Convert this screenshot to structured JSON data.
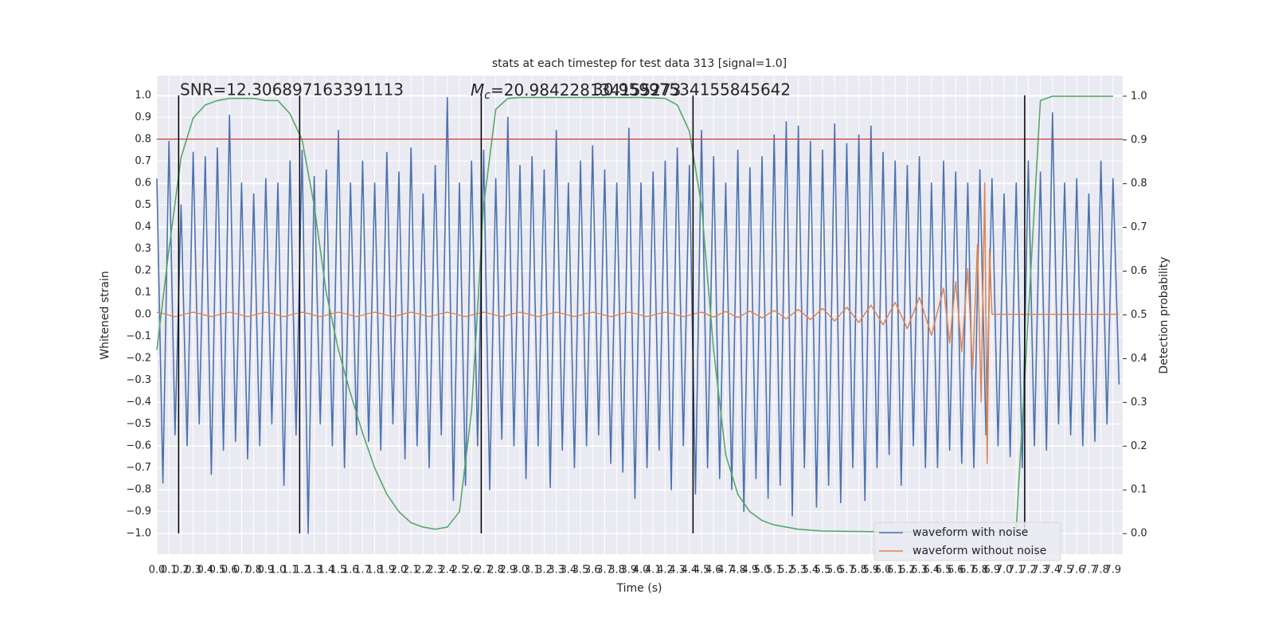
{
  "chart_data": {
    "type": "line",
    "title": "stats at each timestep for test data 313 [signal=1.0]",
    "x_label": "Time (s)",
    "y_label": "Whitened strain",
    "y2_label": "Detection probability",
    "annotations": {
      "snr_text": "SNR=12.306897163391113",
      "mc_symbol": "M",
      "mc_subscript": "c",
      "mc_value": "=20.984228134155273",
      "overlap_text": "30.95997534155845642"
    },
    "xlim": [
      0,
      7.98
    ],
    "ylim": [
      -1.095,
      1.09
    ],
    "y2lim": [
      -0.047,
      1.047
    ],
    "grid": true,
    "legend_position": "lower right",
    "xticks": [
      {
        "value": 0,
        "label": "0.0"
      },
      0.1,
      0.2,
      0.3,
      0.4,
      0.5,
      0.6,
      0.7,
      0.8,
      0.9,
      {
        "value": 1,
        "label": "1.0"
      },
      1.1,
      1.2,
      1.3,
      1.4,
      1.5,
      1.6,
      1.7,
      1.8,
      1.9,
      {
        "value": 2,
        "label": "2.0"
      },
      2.1,
      2.2,
      2.3,
      2.4,
      2.5,
      2.6,
      2.7,
      2.8,
      2.9,
      {
        "value": 3,
        "label": "3.0"
      },
      3.1,
      3.2,
      3.3,
      3.4,
      3.5,
      3.6,
      3.7,
      3.8,
      3.9,
      {
        "value": 4,
        "label": "4.0"
      },
      4.1,
      4.2,
      4.3,
      4.4,
      4.5,
      4.6,
      4.7,
      4.8,
      4.9,
      {
        "value": 5,
        "label": "5.0"
      },
      5.1,
      5.2,
      5.3,
      5.4,
      5.5,
      5.6,
      5.7,
      5.8,
      5.9,
      {
        "value": 6,
        "label": "6.0"
      },
      6.1,
      6.2,
      6.3,
      6.4,
      6.5,
      6.6,
      6.7,
      6.8,
      6.9,
      {
        "value": 7,
        "label": "7.0"
      },
      7.1,
      7.2,
      7.3,
      7.4,
      7.5,
      7.6,
      7.7,
      7.8,
      7.9
    ],
    "yticks": [
      {
        "value": -1,
        "label": "−1.0"
      },
      {
        "value": -0.9,
        "label": "−0.9"
      },
      {
        "value": -0.8,
        "label": "−0.8"
      },
      {
        "value": -0.7,
        "label": "−0.7"
      },
      {
        "value": -0.6,
        "label": "−0.6"
      },
      {
        "value": -0.5,
        "label": "−0.5"
      },
      {
        "value": -0.4,
        "label": "−0.4"
      },
      {
        "value": -0.3,
        "label": "−0.3"
      },
      {
        "value": -0.2,
        "label": "−0.2"
      },
      {
        "value": -0.1,
        "label": "−0.1"
      },
      {
        "value": 0,
        "label": "0.0"
      },
      0.1,
      0.2,
      0.3,
      0.4,
      0.5,
      0.6,
      0.7,
      0.8,
      0.9,
      {
        "value": 1,
        "label": "1.0"
      }
    ],
    "y2ticks": [
      {
        "value": 0,
        "label": "0.0"
      },
      0.1,
      0.2,
      0.3,
      0.4,
      0.5,
      0.6,
      0.7,
      0.8,
      0.9,
      {
        "value": 1,
        "label": "1.0"
      }
    ],
    "threshold": {
      "value": 0.8,
      "color": "#c44e52"
    },
    "vlines": {
      "color": "#000000",
      "x": [
        0.18,
        1.18,
        2.68,
        4.43,
        7.17
      ]
    },
    "series": [
      {
        "name": "waveform with noise",
        "color": "#4c72b0",
        "x": [
          0,
          0.05,
          0.1,
          0.15,
          0.2,
          0.25,
          0.3,
          0.35,
          0.4,
          0.45,
          0.5,
          0.55,
          0.6,
          0.65,
          0.7,
          0.75,
          0.8,
          0.85,
          0.9,
          0.95,
          1,
          1.05,
          1.1,
          1.15,
          1.2,
          1.25,
          1.3,
          1.35,
          1.4,
          1.45,
          1.5,
          1.55,
          1.6,
          1.65,
          1.7,
          1.75,
          1.8,
          1.85,
          1.9,
          1.95,
          2,
          2.05,
          2.1,
          2.15,
          2.2,
          2.25,
          2.3,
          2.35,
          2.4,
          2.45,
          2.5,
          2.55,
          2.6,
          2.65,
          2.7,
          2.75,
          2.8,
          2.85,
          2.9,
          2.95,
          3,
          3.05,
          3.1,
          3.15,
          3.2,
          3.25,
          3.3,
          3.35,
          3.4,
          3.45,
          3.5,
          3.55,
          3.6,
          3.65,
          3.7,
          3.75,
          3.8,
          3.85,
          3.9,
          3.95,
          4,
          4.05,
          4.1,
          4.15,
          4.2,
          4.25,
          4.3,
          4.35,
          4.4,
          4.45,
          4.5,
          4.55,
          4.6,
          4.65,
          4.7,
          4.75,
          4.8,
          4.85,
          4.9,
          4.95,
          5,
          5.05,
          5.1,
          5.15,
          5.2,
          5.25,
          5.3,
          5.35,
          5.4,
          5.45,
          5.5,
          5.55,
          5.6,
          5.65,
          5.7,
          5.75,
          5.8,
          5.85,
          5.9,
          5.95,
          6,
          6.05,
          6.1,
          6.15,
          6.2,
          6.25,
          6.3,
          6.35,
          6.4,
          6.45,
          6.5,
          6.55,
          6.6,
          6.65,
          6.7,
          6.75,
          6.8,
          6.85,
          6.9,
          6.95,
          7,
          7.05,
          7.1,
          7.15,
          7.2,
          7.25,
          7.3,
          7.35,
          7.4,
          7.45,
          7.5,
          7.55,
          7.6,
          7.65,
          7.7,
          7.75,
          7.8,
          7.85,
          7.9,
          7.95
        ],
        "values": [
          0.62,
          -0.77,
          0.79,
          -0.55,
          0.5,
          -0.6,
          0.74,
          -0.5,
          0.72,
          -0.73,
          0.76,
          -0.62,
          0.91,
          -0.58,
          0.6,
          -0.66,
          0.55,
          -0.6,
          0.62,
          -0.5,
          0.6,
          -0.78,
          0.7,
          -0.55,
          0.75,
          -1.0,
          0.63,
          -0.5,
          0.66,
          -0.6,
          0.84,
          -0.7,
          0.6,
          -0.55,
          0.7,
          -0.58,
          0.6,
          -0.62,
          0.74,
          -0.5,
          0.65,
          -0.66,
          0.76,
          -0.6,
          0.55,
          -0.7,
          0.68,
          -0.55,
          0.99,
          -0.85,
          0.6,
          -0.78,
          0.7,
          -0.6,
          0.75,
          -0.8,
          0.62,
          -0.57,
          0.9,
          -0.6,
          0.68,
          -0.75,
          0.72,
          -0.6,
          0.66,
          -0.79,
          0.84,
          -0.62,
          0.6,
          -0.7,
          0.7,
          -0.6,
          0.77,
          -0.55,
          0.66,
          -0.68,
          0.6,
          -0.72,
          0.85,
          -0.84,
          0.6,
          -0.7,
          0.65,
          -0.62,
          0.7,
          -0.8,
          0.76,
          -0.6,
          0.68,
          -0.82,
          0.84,
          -0.7,
          0.72,
          -0.75,
          0.6,
          -0.8,
          0.75,
          -0.9,
          0.67,
          -0.75,
          0.72,
          -0.84,
          0.82,
          -0.78,
          0.88,
          -0.92,
          0.86,
          -0.7,
          0.79,
          -0.88,
          0.75,
          -0.78,
          0.87,
          -0.86,
          0.78,
          -0.7,
          0.82,
          -0.85,
          0.86,
          -0.7,
          0.74,
          -0.64,
          0.7,
          -0.78,
          0.68,
          -0.6,
          0.72,
          -0.7,
          0.6,
          -0.7,
          0.7,
          -0.62,
          0.65,
          -0.68,
          0.6,
          -0.7,
          0.66,
          -0.55,
          0.62,
          -0.6,
          0.55,
          -0.65,
          0.6,
          -0.7,
          0.7,
          -0.6,
          0.65,
          -0.62,
          0.92,
          -0.5,
          0.6,
          -0.55,
          0.62,
          -0.6,
          0.55,
          -0.58,
          0.7,
          -0.5,
          0.62,
          -0.32
        ]
      },
      {
        "name": "waveform without noise",
        "color": "#dd8452",
        "x": [
          0,
          0.15,
          0.3,
          0.45,
          0.6,
          0.75,
          0.9,
          1.05,
          1.2,
          1.35,
          1.5,
          1.65,
          1.8,
          1.95,
          2.1,
          2.25,
          2.4,
          2.55,
          2.7,
          2.85,
          3.0,
          3.15,
          3.3,
          3.45,
          3.6,
          3.75,
          3.9,
          4.05,
          4.2,
          4.35,
          4.5,
          4.6,
          4.7,
          4.8,
          4.9,
          5.0,
          5.1,
          5.2,
          5.3,
          5.4,
          5.5,
          5.6,
          5.7,
          5.8,
          5.9,
          6.0,
          6.1,
          6.2,
          6.3,
          6.4,
          6.5,
          6.55,
          6.6,
          6.65,
          6.7,
          6.74,
          6.78,
          6.81,
          6.84,
          6.86,
          6.88,
          6.9,
          7.95
        ],
        "values": [
          0.01,
          -0.01,
          0.01,
          -0.01,
          0.01,
          -0.01,
          0.01,
          -0.01,
          0.01,
          -0.01,
          0.01,
          -0.01,
          0.01,
          -0.01,
          0.01,
          -0.01,
          0.01,
          -0.01,
          0.01,
          -0.01,
          0.01,
          -0.01,
          0.01,
          -0.01,
          0.01,
          -0.01,
          0.01,
          -0.01,
          0.01,
          -0.01,
          0.01,
          -0.012,
          0.013,
          -0.014,
          0.015,
          -0.016,
          0.018,
          -0.02,
          0.022,
          -0.024,
          0.027,
          -0.03,
          0.033,
          -0.037,
          0.042,
          -0.048,
          0.055,
          -0.065,
          0.078,
          -0.095,
          0.12,
          -0.13,
          0.15,
          -0.17,
          0.21,
          -0.25,
          0.32,
          -0.4,
          0.6,
          -0.68,
          0.3,
          0,
          0
        ]
      }
    ],
    "probability": {
      "color": "#55a868",
      "axis": "y2",
      "x": [
        0,
        0.1,
        0.2,
        0.3,
        0.4,
        0.5,
        0.6,
        0.7,
        0.8,
        0.9,
        1,
        1.1,
        1.2,
        1.3,
        1.4,
        1.5,
        1.6,
        1.7,
        1.8,
        1.9,
        2,
        2.1,
        2.2,
        2.3,
        2.4,
        2.5,
        2.6,
        2.7,
        2.8,
        2.9,
        3,
        3.5,
        4,
        4.2,
        4.3,
        4.4,
        4.5,
        4.6,
        4.7,
        4.8,
        4.9,
        5,
        5.1,
        5.2,
        5.3,
        5.5,
        6,
        6.5,
        7,
        7.1,
        7.2,
        7.3,
        7.4,
        7.9
      ],
      "values": [
        0.42,
        0.65,
        0.86,
        0.95,
        0.98,
        0.99,
        0.995,
        0.995,
        0.995,
        0.99,
        0.99,
        0.96,
        0.9,
        0.75,
        0.55,
        0.42,
        0.32,
        0.23,
        0.15,
        0.09,
        0.05,
        0.025,
        0.015,
        0.01,
        0.015,
        0.05,
        0.28,
        0.75,
        0.97,
        0.995,
        0.997,
        0.997,
        0.997,
        0.995,
        0.98,
        0.92,
        0.75,
        0.42,
        0.18,
        0.09,
        0.05,
        0.03,
        0.02,
        0.015,
        0.01,
        0.006,
        0.004,
        0.003,
        0.003,
        0.01,
        0.5,
        0.99,
        1.0,
        1.0
      ]
    }
  }
}
